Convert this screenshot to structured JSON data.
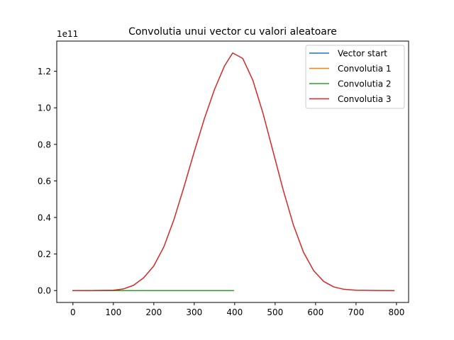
{
  "chart_data": {
    "type": "line",
    "title": "Convolutia unui vector cu valori aleatoare",
    "xlabel": "",
    "ylabel": "",
    "y_offset_text": "1e11",
    "xlim": [
      -40,
      830
    ],
    "ylim": [
      -0.065,
      1.365
    ],
    "xticks": [
      0,
      100,
      200,
      300,
      400,
      500,
      600,
      700,
      800
    ],
    "yticks": [
      0.0,
      0.2,
      0.4,
      0.6,
      0.8,
      1.0,
      1.2
    ],
    "ytick_labels": [
      "0.0",
      "0.2",
      "0.4",
      "0.6",
      "0.8",
      "1.0",
      "1.2"
    ],
    "grid": false,
    "legend_position": "top-right",
    "series": [
      {
        "name": "Vector start",
        "color": "#1f77b4",
        "x": [
          0,
          99
        ],
        "y": [
          0,
          0
        ]
      },
      {
        "name": "Convolutia 1",
        "color": "#ff7f0e",
        "x": [
          0,
          198
        ],
        "y": [
          0,
          0
        ]
      },
      {
        "name": "Convolutia 2",
        "color": "#2ca02c",
        "x": [
          0,
          397
        ],
        "y": [
          0,
          0
        ]
      },
      {
        "name": "Convolutia 3",
        "color": "#d62728",
        "x": [
          0,
          50,
          100,
          125,
          150,
          175,
          200,
          225,
          250,
          275,
          300,
          325,
          350,
          375,
          395,
          420,
          445,
          470,
          495,
          520,
          545,
          570,
          595,
          620,
          645,
          670,
          700,
          750,
          794
        ],
        "y": [
          0,
          0.0002,
          0.002,
          0.009,
          0.029,
          0.07,
          0.135,
          0.24,
          0.39,
          0.57,
          0.76,
          0.94,
          1.1,
          1.23,
          1.3,
          1.27,
          1.15,
          0.97,
          0.76,
          0.55,
          0.36,
          0.21,
          0.11,
          0.05,
          0.02,
          0.007,
          0.002,
          0.0002,
          0
        ]
      }
    ]
  }
}
